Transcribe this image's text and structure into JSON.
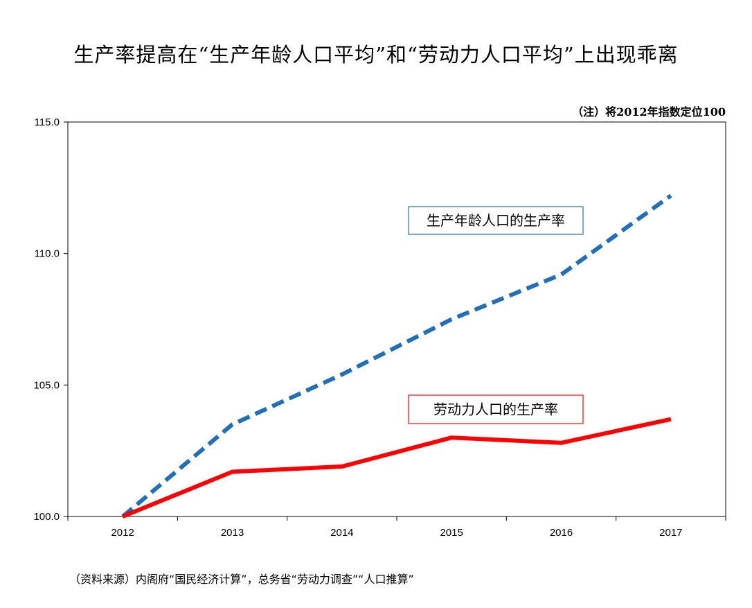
{
  "title": "生产率提高在“生产年龄人口平均”和“劳动力人口平均”上出现乖离",
  "note": "（注）将2012年指数定位100",
  "source": "（资料来源）内阁府“国民经济计算”，总务省“劳动力调查”“人口推算”",
  "chart_data": {
    "type": "line",
    "title": "生产率提高在“生产年龄人口平均”和“劳动力人口平均”上出现乖离",
    "xlabel": "",
    "ylabel": "",
    "categories": [
      "2012",
      "2013",
      "2014",
      "2015",
      "2016",
      "2017"
    ],
    "ylim": [
      100.0,
      115.0
    ],
    "yticks": [
      "100.0",
      "105.0",
      "110.0",
      "115.0"
    ],
    "grid": false,
    "series": [
      {
        "name": "生产年龄人口的生产率",
        "values": [
          100.0,
          103.5,
          105.4,
          107.5,
          109.2,
          112.2
        ],
        "color": "#1f6fba",
        "style": "dashed"
      },
      {
        "name": "劳动力人口的生产率",
        "values": [
          100.0,
          101.7,
          101.9,
          103.0,
          102.8,
          103.7
        ],
        "color": "#ff0000",
        "style": "solid"
      }
    ]
  }
}
